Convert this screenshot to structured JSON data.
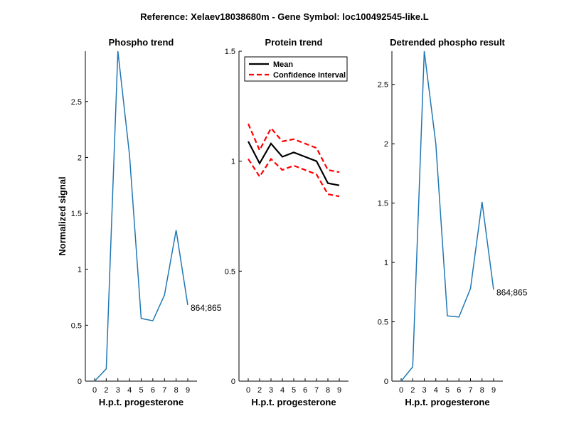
{
  "figure_title": "Reference:  Xelaev18038680m - Gene Symbol:  loc100492545-like.L",
  "colors": {
    "line": "#1f77b4",
    "mean": "#000000",
    "ci": "#ff0000",
    "axis": "#000000"
  },
  "chart_data": [
    {
      "type": "line",
      "title": "Phospho trend",
      "xlabel": "H.p.t. progesterone",
      "ylabel": "Normalized signal",
      "xticks": [
        "0",
        "2",
        "3",
        "4",
        "5",
        "6",
        "7",
        "8",
        "9"
      ],
      "xlim": [
        0,
        9
      ],
      "ylim": [
        0,
        2.95
      ],
      "yticks": [
        0,
        0.5,
        1,
        1.5,
        2,
        2.5
      ],
      "ytick_labels": [
        "0",
        "0.5",
        "1",
        "1.5",
        "2",
        "2.5"
      ],
      "series": [
        {
          "x": [
            0,
            2,
            3,
            4,
            5,
            6,
            7,
            8,
            9
          ],
          "values": [
            0.0,
            0.11,
            2.95,
            2.02,
            0.56,
            0.54,
            0.77,
            1.35,
            0.68
          ]
        }
      ],
      "annotation": {
        "text": "864;865",
        "x": 9,
        "y": 0.68
      }
    },
    {
      "type": "line",
      "title": "Protein trend",
      "xlabel": "H.p.t. progesterone",
      "ylabel": "",
      "xticks": [
        "0",
        "2",
        "3",
        "4",
        "5",
        "6",
        "7",
        "8",
        "9"
      ],
      "xlim": [
        0,
        9
      ],
      "ylim": [
        0,
        1.5
      ],
      "yticks": [
        0,
        0.5,
        1,
        1.5
      ],
      "ytick_labels": [
        "0",
        "0.5",
        "1",
        "1.5"
      ],
      "legend": {
        "placement": "top-left",
        "entries": [
          "Mean",
          "Confidence Interval"
        ]
      },
      "series": [
        {
          "name": "Mean",
          "x": [
            0,
            2,
            3,
            4,
            5,
            6,
            7,
            8,
            9
          ],
          "values": [
            1.09,
            0.99,
            1.08,
            1.02,
            1.04,
            1.02,
            1.0,
            0.9,
            0.89
          ]
        },
        {
          "name": "Confidence Interval",
          "x": [
            0,
            2,
            3,
            4,
            5,
            6,
            7,
            8,
            9
          ],
          "values": [
            1.17,
            1.05,
            1.15,
            1.09,
            1.1,
            1.08,
            1.06,
            0.96,
            0.95
          ]
        },
        {
          "name": "Confidence Interval",
          "x": [
            0,
            2,
            3,
            4,
            5,
            6,
            7,
            8,
            9
          ],
          "values": [
            1.01,
            0.93,
            1.01,
            0.96,
            0.98,
            0.96,
            0.94,
            0.85,
            0.84
          ]
        }
      ]
    },
    {
      "type": "line",
      "title": "Detrended phospho result",
      "xlabel": "H.p.t. progesterone",
      "ylabel": "",
      "xticks": [
        "0",
        "2",
        "3",
        "4",
        "5",
        "6",
        "7",
        "8",
        "9"
      ],
      "xlim": [
        0,
        9
      ],
      "ylim": [
        0,
        2.78
      ],
      "yticks": [
        0,
        0.5,
        1,
        1.5,
        2,
        2.5
      ],
      "ytick_labels": [
        "0",
        "0.5",
        "1",
        "1.5",
        "2",
        "2.5"
      ],
      "series": [
        {
          "x": [
            0,
            2,
            3,
            4,
            5,
            6,
            7,
            8,
            9
          ],
          "values": [
            0.0,
            0.12,
            2.78,
            2.0,
            0.55,
            0.54,
            0.78,
            1.51,
            0.77
          ]
        }
      ],
      "annotation": {
        "text": "864;865",
        "x": 9,
        "y": 0.77
      }
    }
  ]
}
